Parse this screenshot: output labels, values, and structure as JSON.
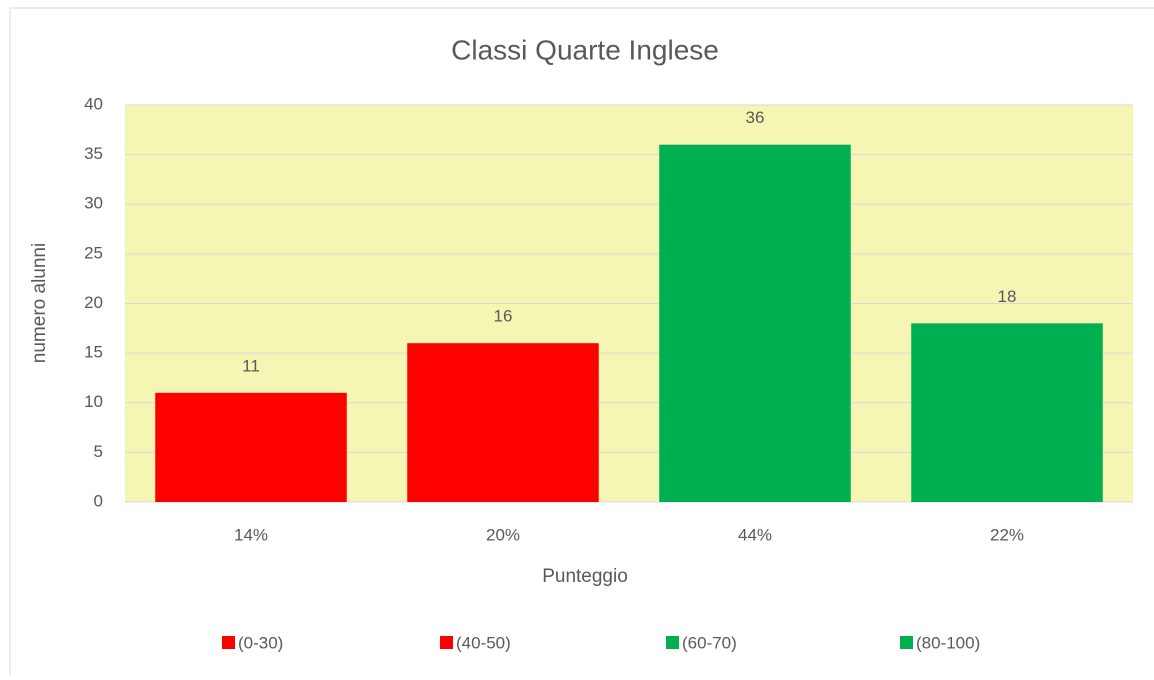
{
  "chart_data": {
    "type": "bar",
    "title": "Classi Quarte Inglese",
    "x_label": "Punteggio",
    "y_label": "numero alunni",
    "categories": [
      "14%",
      "20%",
      "44%",
      "22%"
    ],
    "series": [
      {
        "name": "(0-30)",
        "color": "#ff0000",
        "values": [
          11,
          null,
          null,
          null
        ]
      },
      {
        "name": "(40-50)",
        "color": "#ff0000",
        "values": [
          null,
          16,
          null,
          null
        ]
      },
      {
        "name": "(60-70)",
        "color": "#00b050",
        "values": [
          null,
          null,
          36,
          null
        ]
      },
      {
        "name": "(80-100)",
        "color": "#00b050",
        "values": [
          null,
          null,
          null,
          18
        ]
      }
    ],
    "ylim": [
      0,
      40
    ],
    "yticks": [
      0,
      5,
      10,
      15,
      20,
      25,
      30,
      35,
      40
    ],
    "grid": true,
    "plot_background": "#f6f6b4",
    "legend": "bottom"
  }
}
